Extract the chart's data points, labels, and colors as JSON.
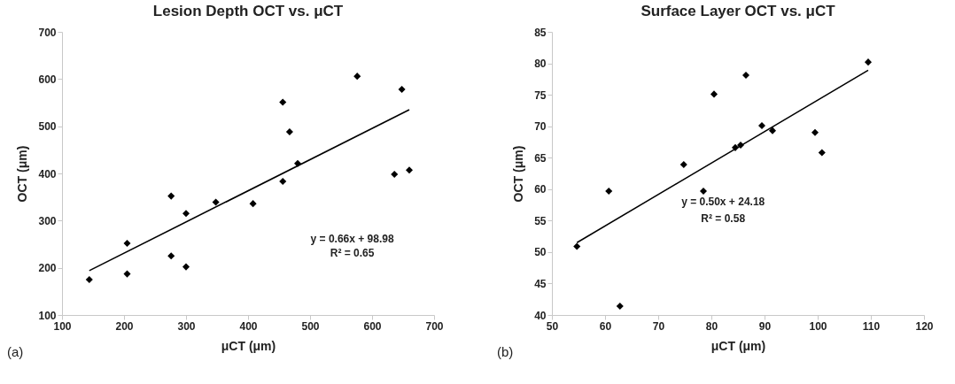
{
  "chart_data": [
    {
      "type": "scatter",
      "title": "Lesion Depth OCT vs. μCT",
      "xlabel": "μCT (μm)",
      "ylabel": "OCT (μm)",
      "xlim": [
        100,
        700
      ],
      "xticks": [
        100,
        200,
        300,
        400,
        500,
        600,
        700
      ],
      "ylim": [
        100,
        700
      ],
      "yticks": [
        100,
        200,
        300,
        400,
        500,
        600,
        700
      ],
      "series": [
        {
          "color": "#000000",
          "marker": "diamond",
          "x": [
            144,
            205,
            205,
            276,
            276,
            300,
            300,
            348,
            408,
            456,
            456,
            467,
            480,
            576,
            636,
            648,
            660
          ],
          "values": [
            175,
            252,
            187,
            352,
            225,
            315,
            202,
            339,
            336,
            551,
            383,
            488,
            421,
            606,
            398,
            578,
            407
          ]
        },
        {
          "type": "line",
          "color": "#000000",
          "x": [
            144,
            660
          ],
          "values": [
            194,
            535
          ]
        }
      ],
      "annotations": [
        "y = 0.66x + 98.98",
        "R² = 0.65",
        "(a)"
      ]
    },
    {
      "type": "scatter",
      "title": "Surface Layer OCT vs. μCT",
      "xlabel": "μCT (μm)",
      "ylabel": "OCT (μm)",
      "xlim": [
        50,
        120
      ],
      "xticks": [
        50,
        60,
        70,
        80,
        90,
        100,
        110,
        120
      ],
      "ylim": [
        40,
        85
      ],
      "yticks": [
        40,
        45,
        50,
        55,
        60,
        65,
        70,
        75,
        80,
        85
      ],
      "series": [
        {
          "color": "#000000",
          "marker": "diamond",
          "x": [
            54.7,
            60.7,
            62.8,
            74.8,
            78.5,
            80.5,
            84.5,
            85.5,
            86.5,
            89.5,
            91.5,
            99.5,
            100.8,
            109.5
          ],
          "values": [
            50.9,
            59.7,
            41.4,
            63.9,
            59.7,
            75.1,
            66.6,
            67.0,
            78.1,
            70.1,
            69.3,
            69.0,
            65.8,
            80.2
          ]
        },
        {
          "type": "line",
          "color": "#000000",
          "x": [
            54.7,
            109.5
          ],
          "values": [
            51.5,
            78.9
          ]
        }
      ],
      "annotations": [
        "y = 0.50x + 24.18",
        "R² = 0.58",
        "(b)"
      ]
    }
  ]
}
